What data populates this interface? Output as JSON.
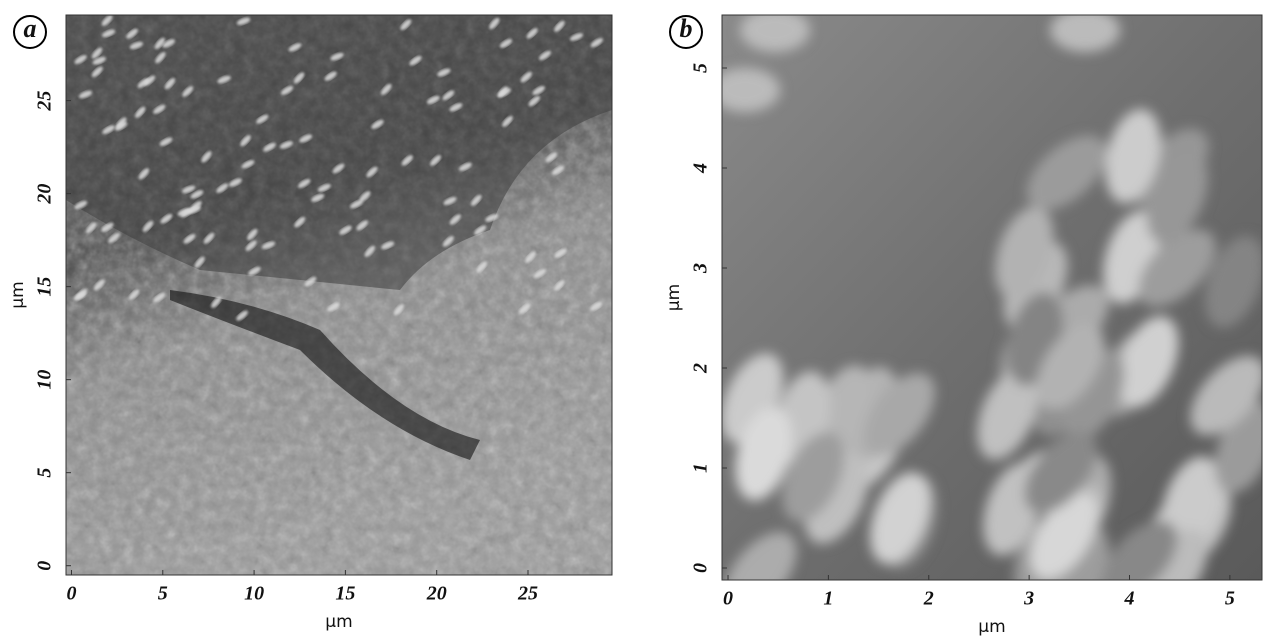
{
  "panels": [
    {
      "label": "a",
      "xlabel": "μm",
      "ylabel": "μm",
      "xlim": [
        -0.3,
        29.6
      ],
      "ylim": [
        -0.5,
        29.6
      ],
      "xticks": [
        0,
        5,
        10,
        15,
        20,
        25
      ],
      "yticks": [
        0,
        5,
        10,
        15,
        20,
        25
      ]
    },
    {
      "label": "b",
      "xlabel": "μm",
      "ylabel": "μm",
      "xlim": [
        -0.06,
        5.32
      ],
      "ylim": [
        -0.12,
        5.53
      ],
      "xticks": [
        0,
        1,
        2,
        3,
        4,
        5
      ],
      "yticks": [
        0,
        1,
        2,
        3,
        4,
        5
      ]
    }
  ]
}
